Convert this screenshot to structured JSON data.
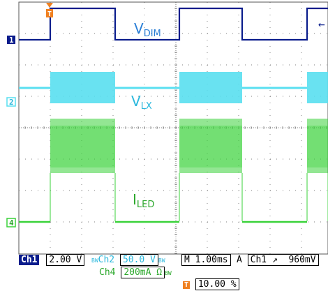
{
  "colors": {
    "ch1": "#0a1c8c",
    "ch2": "#59dff0",
    "ch4": "#3ad23a",
    "trigger": "#f08020",
    "grid": "#555555"
  },
  "traces": {
    "v_dim": {
      "main": "V",
      "sub": "DIM"
    },
    "v_lx": {
      "main": "V",
      "sub": "LX"
    },
    "i_led": {
      "main": "I",
      "sub": "LED"
    }
  },
  "markers": {
    "ch1": "1",
    "ch2": "2",
    "ch4": "4",
    "trigger": "T"
  },
  "status": {
    "ch1_tag": "Ch1",
    "ch1_scale": "2.00 V",
    "ch2_tag": "Ch2",
    "ch2_scale": "50.0 V",
    "bw_mark": "BW",
    "timebase": "M 1.00ms",
    "acq_mode": "A",
    "trigger_source": "Ch1",
    "trigger_slope": "↗",
    "trigger_level": "960mV",
    "ch4_tag": "Ch4",
    "ch4_scale": "200mA Ω",
    "trigger_position": "10.00 %"
  }
}
